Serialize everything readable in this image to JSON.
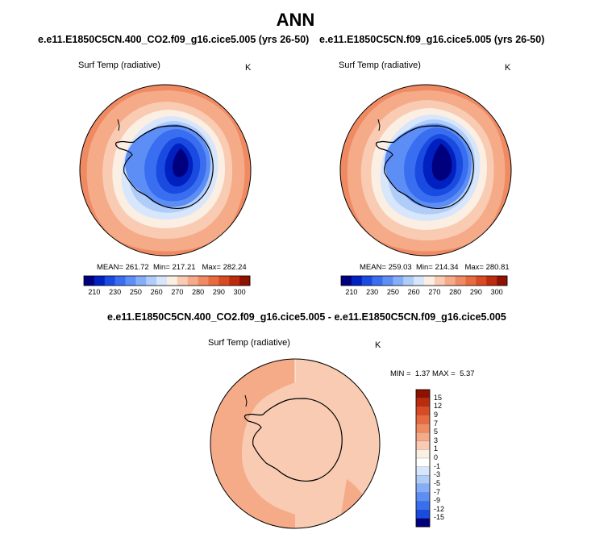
{
  "page": {
    "title": "ANN"
  },
  "panels": [
    {
      "case_title": "e.e11.E1850C5CN.400_CO2.f09_g16.cice5.005 (yrs 26-50)",
      "variable": "Surf Temp (radiative)",
      "units": "K",
      "mean_label": "MEAN=",
      "mean": "261.72",
      "min_label": "Min=",
      "min": "217.21",
      "max_label": "Max=",
      "max": "282.24"
    },
    {
      "case_title": "e.e11.E1850C5CN.f09_g16.cice5.005 (yrs 26-50)",
      "variable": "Surf Temp (radiative)",
      "units": "K",
      "mean_label": "MEAN=",
      "mean": "259.03",
      "min_label": "Min=",
      "min": "214.34",
      "max_label": "Max=",
      "max": "280.81"
    }
  ],
  "difference": {
    "case_title": "e.e11.E1850C5CN.400_CO2.f09_g16.cice5.005 - e.e11.E1850C5CN.f09_g16.cice5.005",
    "variable": "Surf Temp (radiative)",
    "units": "K",
    "min_label": "MIN =",
    "min": "1.37",
    "max_label": "MAX =",
    "max": "5.37"
  },
  "chart_data": [
    {
      "type": "heatmap",
      "projection": "south-polar-stereographic",
      "title": "e.e11.E1850C5CN.400_CO2.f09_g16.cice5.005 (yrs 26-50)",
      "variable": "Surf Temp (radiative)",
      "units": "K",
      "mean": 261.72,
      "min": 217.21,
      "max": 282.24,
      "colorbar_orientation": "horizontal",
      "colorbar_tick_labels": [
        "210",
        "230",
        "250",
        "260",
        "270",
        "280",
        "290",
        "300"
      ],
      "colorbar_colors": [
        "#00007f",
        "#0020c0",
        "#1a4be0",
        "#3a6ef0",
        "#5d8ef5",
        "#86adf7",
        "#b0cdf9",
        "#d8e6fb",
        "#fbeee2",
        "#f8cbb2",
        "#f5aa88",
        "#f08a62",
        "#e86a3f",
        "#d84a23",
        "#bb2b0e",
        "#8f1100"
      ]
    },
    {
      "type": "heatmap",
      "projection": "south-polar-stereographic",
      "title": "e.e11.E1850C5CN.f09_g16.cice5.005 (yrs 26-50)",
      "variable": "Surf Temp (radiative)",
      "units": "K",
      "mean": 259.03,
      "min": 214.34,
      "max": 280.81,
      "colorbar_orientation": "horizontal",
      "colorbar_tick_labels": [
        "210",
        "230",
        "250",
        "260",
        "270",
        "280",
        "290",
        "300"
      ],
      "colorbar_colors": [
        "#00007f",
        "#0020c0",
        "#1a4be0",
        "#3a6ef0",
        "#5d8ef5",
        "#86adf7",
        "#b0cdf9",
        "#d8e6fb",
        "#fbeee2",
        "#f8cbb2",
        "#f5aa88",
        "#f08a62",
        "#e86a3f",
        "#d84a23",
        "#bb2b0e",
        "#8f1100"
      ]
    },
    {
      "type": "heatmap",
      "projection": "south-polar-stereographic",
      "title": "e.e11.E1850C5CN.400_CO2.f09_g16.cice5.005 - e.e11.E1850C5CN.f09_g16.cice5.005",
      "variable": "Surf Temp (radiative)",
      "units": "K",
      "min": 1.37,
      "max": 5.37,
      "colorbar_orientation": "vertical",
      "colorbar_tick_labels": [
        "15",
        "12",
        "9",
        "7",
        "5",
        "3",
        "1",
        "0",
        "-1",
        "-3",
        "-5",
        "-7",
        "-9",
        "-12",
        "-15"
      ],
      "colorbar_colors": [
        "#8f1100",
        "#bb2b0e",
        "#d84a23",
        "#e86a3f",
        "#f08a62",
        "#f5aa88",
        "#f8cbb2",
        "#fbeee2",
        "#ffffff",
        "#d8e6fb",
        "#b0cdf9",
        "#86adf7",
        "#5d8ef5",
        "#3a6ef0",
        "#1a4be0",
        "#00007f"
      ]
    }
  ]
}
